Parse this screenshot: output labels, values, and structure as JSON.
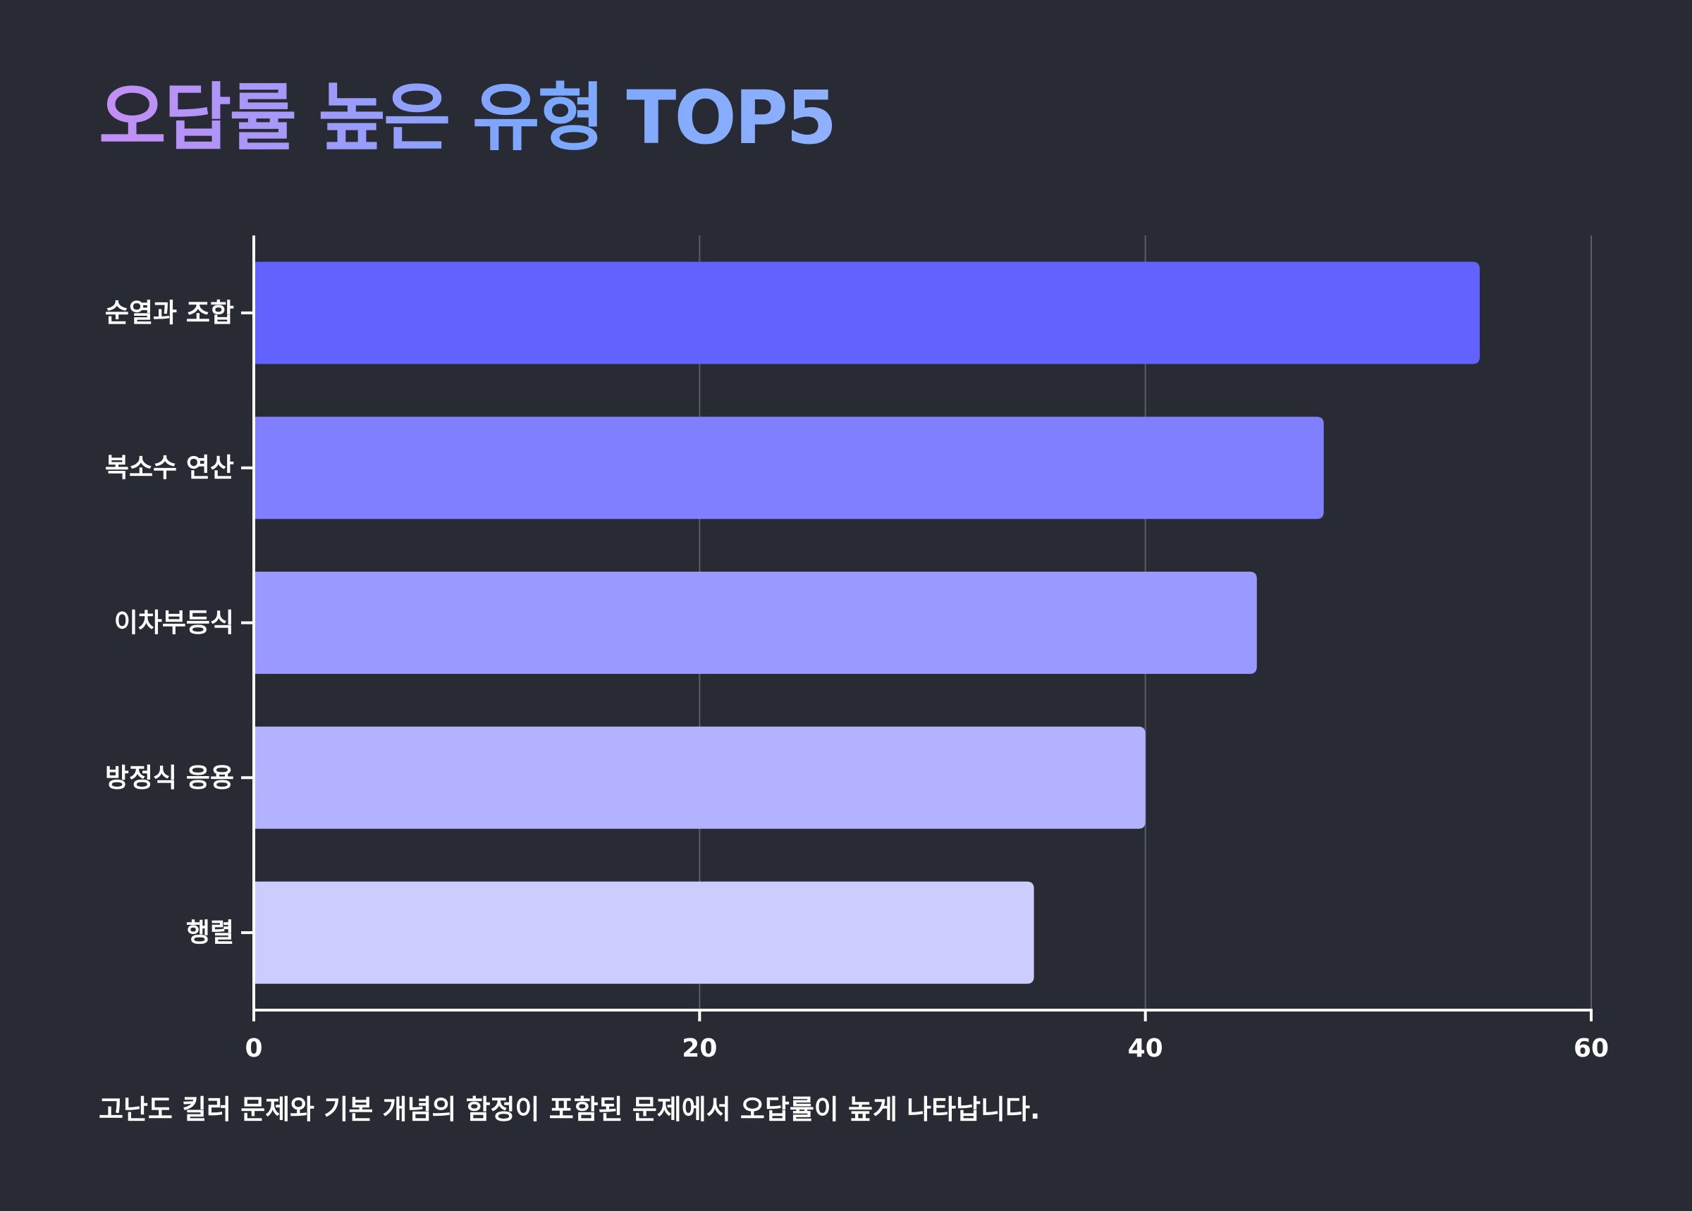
{
  "chart_data": {
    "type": "bar",
    "orientation": "horizontal",
    "title": "오답률 높은 유형 TOP5",
    "categories": [
      "순열과 조합",
      "복소수 연산",
      "이차부등식",
      "방정식 응용",
      "행렬"
    ],
    "values": [
      55,
      48,
      45,
      40,
      35
    ],
    "colors": [
      "#6262ff",
      "#7f7fff",
      "#9999ff",
      "#b2b2ff",
      "#ccccff"
    ],
    "xlim": [
      0,
      60
    ],
    "xticks": [
      0,
      20,
      40,
      60
    ],
    "xtick_labels": [
      "0",
      "20",
      "40",
      "60"
    ],
    "grid": true,
    "xlabel": "",
    "ylabel": "",
    "caption": "고난도 킬러 문제와 기본 개념의 함정이 포함된 문제에서 오답률이 높게 나타납니다."
  },
  "theme": {
    "background": "#282b34",
    "axis_color": "#ffffff",
    "grid_color": "#5a5d66"
  }
}
